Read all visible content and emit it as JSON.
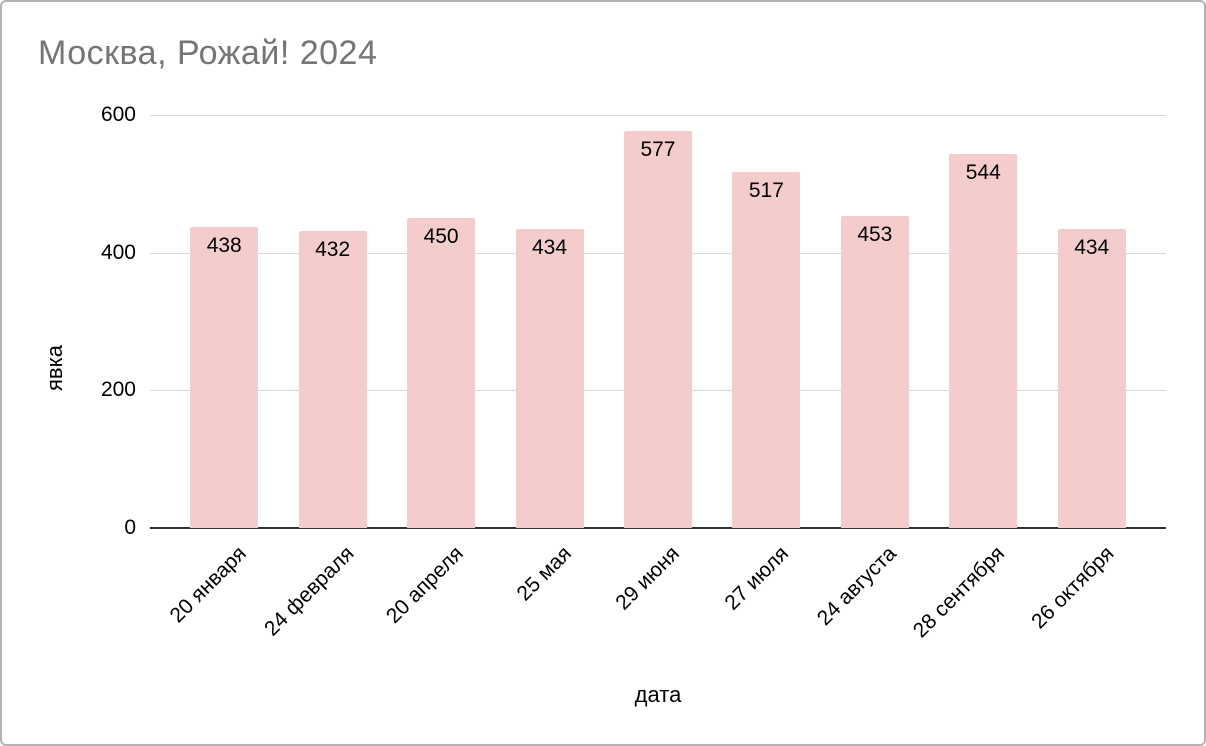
{
  "chart_data": {
    "type": "bar",
    "title": "Москва, Рожай! 2024",
    "categories": [
      "20 января",
      "24 февраля",
      "20 апреля",
      "25 мая",
      "29 июня",
      "27 июля",
      "24 августа",
      "28 сентября",
      "26 октября"
    ],
    "values": [
      438,
      432,
      450,
      434,
      577,
      517,
      453,
      544,
      434
    ],
    "xlabel": "дата",
    "ylabel": "явка",
    "ylim": [
      0,
      600
    ],
    "yticks": [
      0,
      200,
      400,
      600
    ],
    "grid": true,
    "legend": "none",
    "bar_color": "#f4cccc",
    "title_color": "#757575"
  }
}
